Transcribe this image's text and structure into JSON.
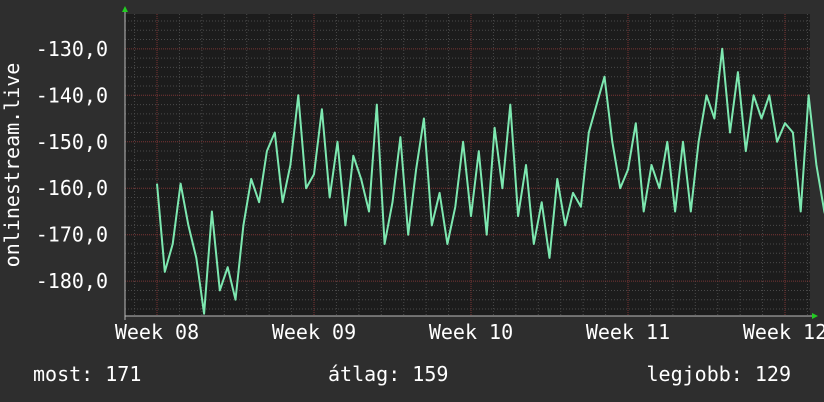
{
  "chart_data": {
    "type": "line",
    "title": "",
    "xlabel": "",
    "ylabel": "onlinestream.live",
    "ylim": [
      -187.5,
      -122.5
    ],
    "xlim": [
      0,
      4.35
    ],
    "y_ticks": [
      -130,
      -140,
      -150,
      -160,
      -170,
      -180
    ],
    "y_tick_labels": [
      "-130,0",
      "-140,0",
      "-150,0",
      "-160,0",
      "-170,0",
      "-180,0"
    ],
    "x_ticks": [
      0,
      1,
      2,
      3,
      4
    ],
    "x_tick_labels": [
      "Week 08",
      "Week 09",
      "Week 10",
      "Week 11",
      "Week 12"
    ],
    "grid": true,
    "series": [
      {
        "color": "#7de8b0",
        "x": [
          0.0,
          0.05,
          0.1,
          0.15,
          0.2,
          0.25,
          0.3,
          0.35,
          0.4,
          0.45,
          0.5,
          0.55,
          0.6,
          0.65,
          0.7,
          0.75,
          0.8,
          0.85,
          0.9,
          0.95,
          1.0,
          1.05,
          1.1,
          1.15,
          1.2,
          1.25,
          1.3,
          1.35,
          1.4,
          1.45,
          1.5,
          1.55,
          1.6,
          1.65,
          1.7,
          1.75,
          1.8,
          1.85,
          1.9,
          1.95,
          2.0,
          2.05,
          2.1,
          2.15,
          2.2,
          2.25,
          2.3,
          2.35,
          2.4,
          2.45,
          2.5,
          2.55,
          2.6,
          2.65,
          2.7,
          2.75,
          2.8,
          2.85,
          2.9,
          2.95,
          3.0,
          3.05,
          3.1,
          3.15,
          3.2,
          3.25,
          3.3,
          3.35,
          3.4,
          3.45,
          3.5,
          3.55,
          3.6,
          3.65,
          3.7,
          3.75,
          3.8,
          3.85,
          3.9,
          3.95,
          4.0,
          4.05,
          4.1,
          4.15,
          4.2,
          4.25,
          4.3
        ],
        "y": [
          -159,
          -178,
          -172,
          -159,
          -168,
          -175,
          -187,
          -165,
          -182,
          -177,
          -184,
          -168,
          -158,
          -163,
          -152,
          -148,
          -163,
          -155,
          -140,
          -160,
          -157,
          -143,
          -162,
          -150,
          -168,
          -153,
          -158,
          -165,
          -142,
          -172,
          -163,
          -149,
          -170,
          -156,
          -145,
          -168,
          -161,
          -172,
          -164,
          -150,
          -166,
          -152,
          -170,
          -147,
          -160,
          -142,
          -166,
          -155,
          -172,
          -163,
          -175,
          -158,
          -168,
          -161,
          -164,
          -148,
          -142,
          -136,
          -150,
          -160,
          -156,
          -146,
          -165,
          -155,
          -160,
          -150,
          -165,
          -150,
          -165,
          -150,
          -140,
          -145,
          -130,
          -148,
          -135,
          -152,
          -140,
          -145,
          -140,
          -150,
          -146,
          -148,
          -165,
          -140,
          -155,
          -165,
          -171
        ]
      }
    ],
    "stats": {
      "now_label": "most:",
      "now_value": "171",
      "avg_label": "átlag:",
      "avg_value": "159",
      "best_label": "legjobb:",
      "best_value": "129"
    }
  },
  "colors": {
    "background": "#2e2e2e",
    "plot_background": "#1c1c1c",
    "line": "#7de8b0",
    "major_grid": "#7a3535",
    "minor_grid": "#4a4a4a",
    "arrow": "#22cc22",
    "text": "#ffffff"
  }
}
